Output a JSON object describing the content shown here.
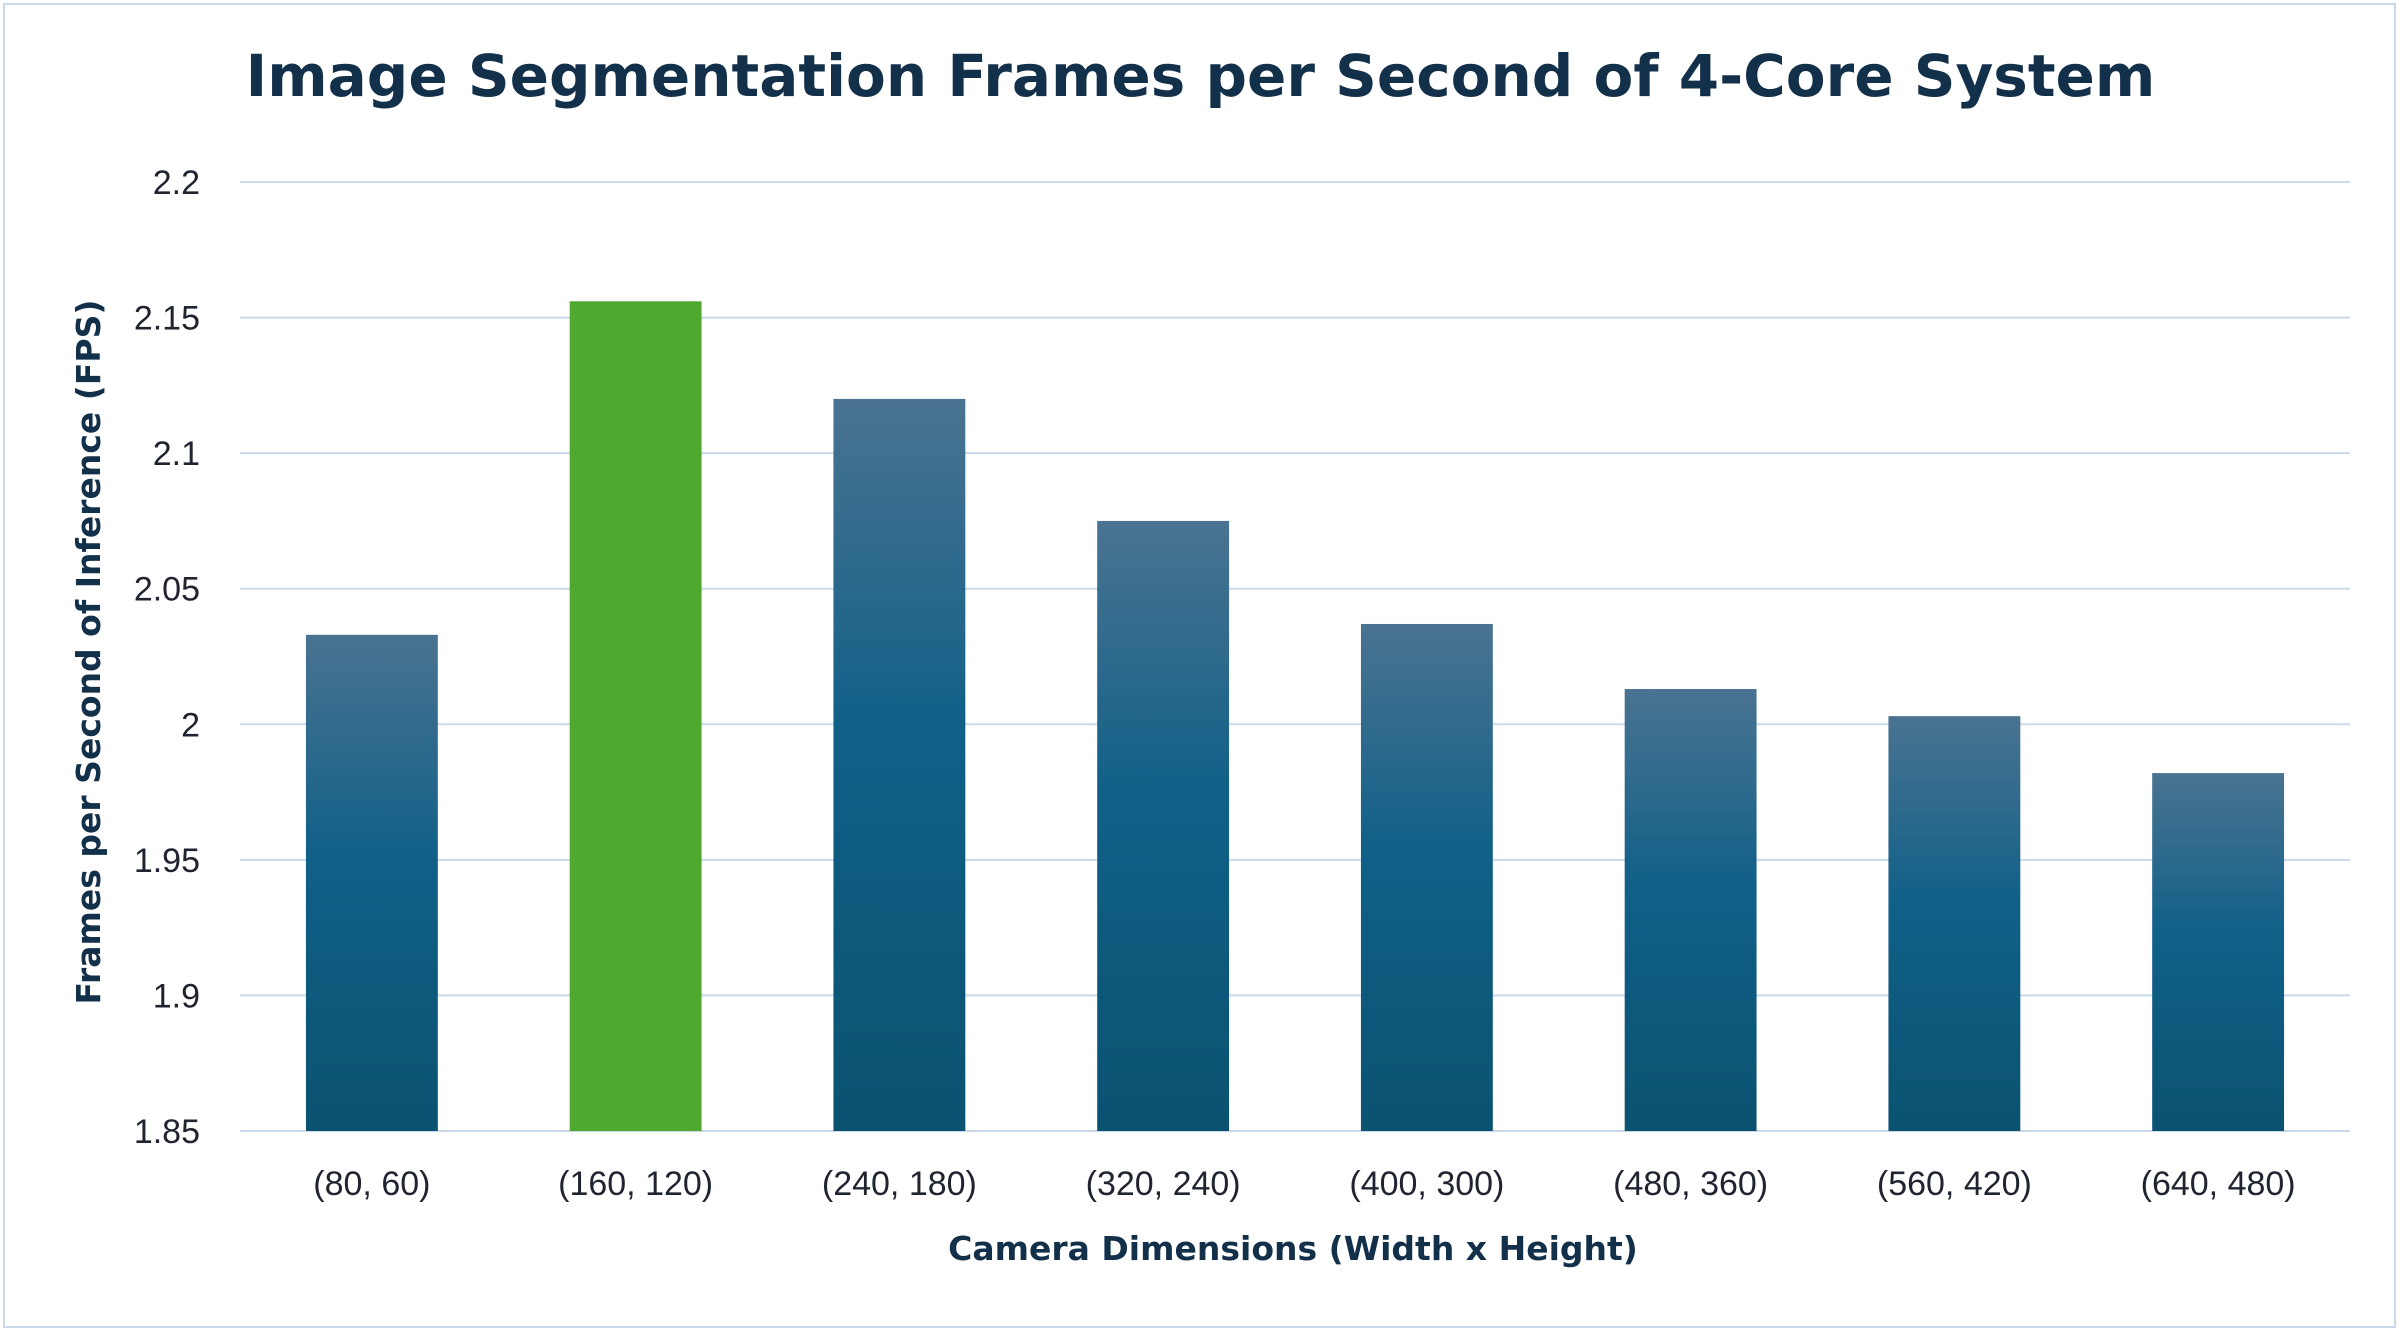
{
  "chart_data": {
    "type": "bar",
    "title": "Image Segmentation Frames per Second of 4-Core System",
    "xlabel": "Camera Dimensions (Width x Height)",
    "ylabel": "Frames per Second of Inference (FPS)",
    "categories": [
      "(80, 60)",
      "(160, 120)",
      "(240, 180)",
      "(320, 240)",
      "(400, 300)",
      "(480, 360)",
      "(560, 420)",
      "(640, 480)"
    ],
    "values": [
      2.033,
      2.156,
      2.12,
      2.075,
      2.037,
      2.013,
      2.003,
      1.982
    ],
    "ylim": [
      1.85,
      2.2
    ],
    "yticks": [
      "1.85",
      "1.9",
      "1.95",
      "2",
      "2.05",
      "2.1",
      "2.15",
      "2.2"
    ],
    "highlight_index": 1,
    "grid": true,
    "legend": "none",
    "colors": {
      "bar_top": "#4a7391",
      "bar_bottom": "#0a5270",
      "bar_mid": "#106088",
      "highlight": "#4fa830",
      "grid": "#c9d9ea",
      "title": "#13304a"
    }
  }
}
